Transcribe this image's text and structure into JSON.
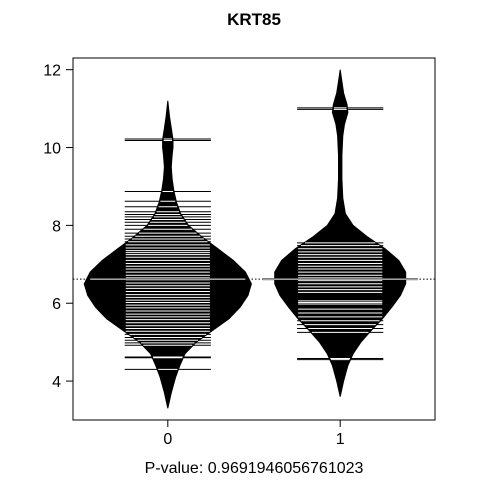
{
  "chart_data": {
    "type": "beanplot",
    "title": "KRT85",
    "xlabel": "P-value: 0.9691946056761023",
    "ylabel": "",
    "ylim": [
      3.0,
      12.3
    ],
    "yticks": [
      4,
      6,
      8,
      10,
      12
    ],
    "overall_mean": 6.62,
    "groups": [
      {
        "category": "0",
        "mean": 6.62,
        "density": [
          [
            3.3,
            0.0
          ],
          [
            3.7,
            0.04
          ],
          [
            4.1,
            0.09
          ],
          [
            4.4,
            0.14
          ],
          [
            4.7,
            0.2
          ],
          [
            5.0,
            0.33
          ],
          [
            5.3,
            0.52
          ],
          [
            5.6,
            0.71
          ],
          [
            5.9,
            0.84
          ],
          [
            6.2,
            0.93
          ],
          [
            6.5,
            0.97
          ],
          [
            6.8,
            0.9
          ],
          [
            7.1,
            0.76
          ],
          [
            7.4,
            0.58
          ],
          [
            7.7,
            0.4
          ],
          [
            8.0,
            0.24
          ],
          [
            8.3,
            0.15
          ],
          [
            8.6,
            0.1
          ],
          [
            8.9,
            0.07
          ],
          [
            9.2,
            0.05
          ],
          [
            9.5,
            0.04
          ],
          [
            9.8,
            0.05
          ],
          [
            10.0,
            0.06
          ],
          [
            10.2,
            0.06
          ],
          [
            10.5,
            0.04
          ],
          [
            10.8,
            0.02
          ],
          [
            11.2,
            0.0
          ]
        ],
        "points": [
          10.22,
          10.18,
          8.87,
          8.62,
          8.48,
          8.35,
          8.28,
          8.22,
          8.15,
          8.08,
          8.0,
          7.9,
          7.8,
          7.72,
          7.65,
          7.58,
          7.5,
          7.42,
          7.35,
          7.3,
          7.25,
          7.18,
          7.1,
          7.02,
          6.95,
          6.88,
          6.8,
          6.72,
          6.65,
          6.6,
          6.52,
          6.45,
          6.38,
          6.3,
          6.22,
          6.15,
          6.08,
          6.02,
          5.95,
          5.88,
          5.8,
          5.72,
          5.65,
          5.58,
          5.5,
          5.42,
          5.35,
          5.28,
          5.2,
          5.12,
          5.05,
          4.98,
          4.92,
          4.6,
          4.62,
          4.3
        ]
      },
      {
        "category": "1",
        "mean": 6.62,
        "density": [
          [
            3.6,
            0.0
          ],
          [
            4.0,
            0.04
          ],
          [
            4.4,
            0.09
          ],
          [
            4.7,
            0.15
          ],
          [
            5.0,
            0.24
          ],
          [
            5.3,
            0.36
          ],
          [
            5.6,
            0.49
          ],
          [
            5.9,
            0.6
          ],
          [
            6.2,
            0.7
          ],
          [
            6.5,
            0.76
          ],
          [
            6.8,
            0.76
          ],
          [
            7.1,
            0.68
          ],
          [
            7.4,
            0.52
          ],
          [
            7.7,
            0.32
          ],
          [
            8.0,
            0.15
          ],
          [
            8.3,
            0.06
          ],
          [
            8.7,
            0.03
          ],
          [
            9.2,
            0.02
          ],
          [
            9.8,
            0.02
          ],
          [
            10.3,
            0.03
          ],
          [
            10.6,
            0.05
          ],
          [
            10.9,
            0.09
          ],
          [
            11.1,
            0.08
          ],
          [
            11.4,
            0.04
          ],
          [
            11.7,
            0.02
          ],
          [
            12.0,
            0.0
          ]
        ],
        "points": [
          11.02,
          10.98,
          7.55,
          7.48,
          7.4,
          7.32,
          7.25,
          7.18,
          7.1,
          7.02,
          6.95,
          6.88,
          6.8,
          6.72,
          6.65,
          6.58,
          6.5,
          6.42,
          6.35,
          6.28,
          6.06,
          6.02,
          5.98,
          5.85,
          5.75,
          5.65,
          5.55,
          5.45,
          5.35,
          5.25,
          4.58,
          4.55
        ]
      }
    ]
  }
}
